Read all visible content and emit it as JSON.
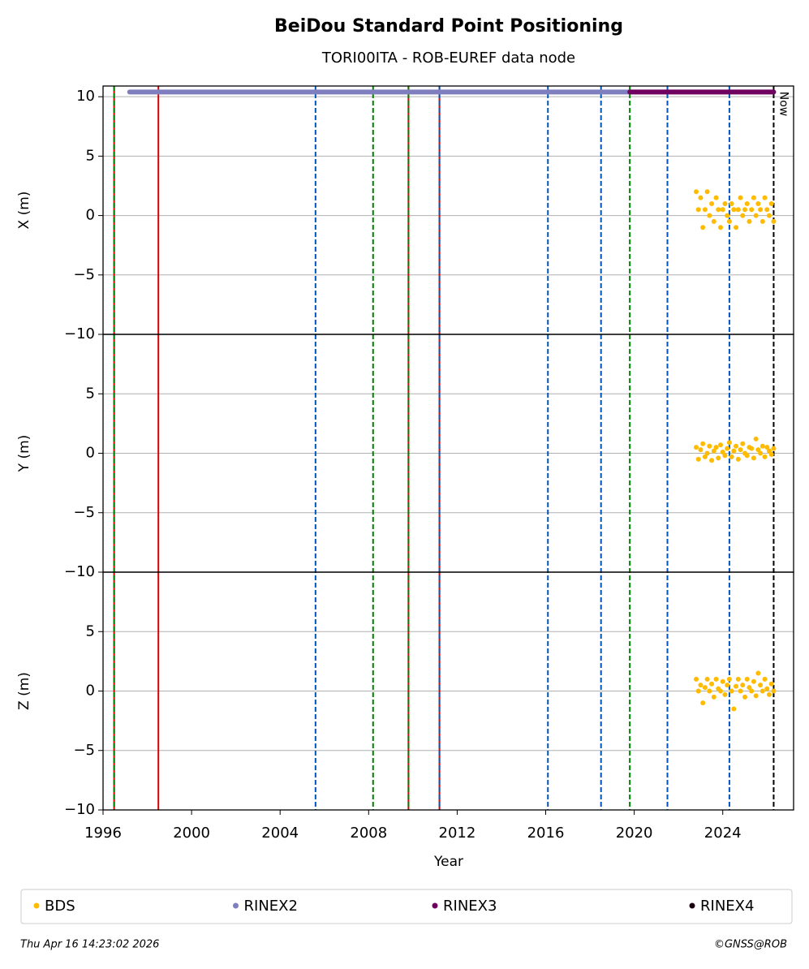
{
  "chart_data": {
    "type": "scatter",
    "title": "BeiDou Standard Point Positioning",
    "subtitle": "TORI00ITA - ROB-EUREF data node",
    "x_label": "Year",
    "xlim": [
      1996,
      2027.2
    ],
    "xticks": [
      1996,
      2000,
      2004,
      2008,
      2012,
      2016,
      2020,
      2024
    ],
    "grid": true,
    "legend": "bottom",
    "panels": [
      {
        "y_label": "X (m)",
        "ylim": [
          -10,
          10.9
        ],
        "yticks": [
          {
            "value": -10,
            "label": "−10"
          },
          {
            "value": -5,
            "label": "−5"
          },
          0,
          5,
          10
        ]
      },
      {
        "y_label": "Y (m)",
        "ylim": [
          -10,
          10
        ],
        "yticks": [
          {
            "value": -10,
            "label": "−10"
          },
          {
            "value": -5,
            "label": "−5"
          },
          0,
          5
        ]
      },
      {
        "y_label": "Z (m)",
        "ylim": [
          -10,
          10
        ],
        "yticks": [
          {
            "value": -10,
            "label": "−10"
          },
          {
            "value": -5,
            "label": "−5"
          },
          0,
          5
        ]
      }
    ],
    "series": [
      {
        "name": "BDS",
        "color": "#ffbb00",
        "panels": [
          {
            "x": [
              2022.8,
              2022.9,
              2023.0,
              2023.1,
              2023.2,
              2023.3,
              2023.4,
              2023.5,
              2023.6,
              2023.7,
              2023.8,
              2023.9,
              2024.0,
              2024.1,
              2024.2,
              2024.3,
              2024.4,
              2024.5,
              2024.6,
              2024.7,
              2024.8,
              2024.9,
              2025.0,
              2025.1,
              2025.2,
              2025.3,
              2025.4,
              2025.5,
              2025.6,
              2025.7,
              2025.8,
              2025.9,
              2026.0,
              2026.1,
              2026.2,
              2026.3
            ],
            "values": [
              2,
              0.5,
              1.5,
              -1,
              0.5,
              2,
              0,
              1,
              -0.5,
              1.5,
              0.5,
              -1,
              0.5,
              1,
              0,
              -0.5,
              1,
              0.5,
              -1,
              0.5,
              1.5,
              0,
              0.5,
              1,
              -0.5,
              0.5,
              1.5,
              0,
              1,
              0.5,
              -0.5,
              1.5,
              0.5,
              0,
              1,
              -0.5
            ]
          },
          {
            "x": [
              2022.8,
              2022.9,
              2023.0,
              2023.1,
              2023.2,
              2023.3,
              2023.4,
              2023.5,
              2023.6,
              2023.7,
              2023.8,
              2023.9,
              2024.0,
              2024.1,
              2024.2,
              2024.3,
              2024.4,
              2024.5,
              2024.6,
              2024.7,
              2024.8,
              2024.9,
              2025.0,
              2025.1,
              2025.2,
              2025.3,
              2025.4,
              2025.5,
              2025.6,
              2025.7,
              2025.8,
              2025.9,
              2026.0,
              2026.1,
              2026.2,
              2026.3
            ],
            "values": [
              0.5,
              -0.5,
              0.3,
              0.8,
              -0.3,
              0,
              0.6,
              -0.6,
              0.2,
              0.5,
              -0.4,
              0.7,
              0.1,
              -0.2,
              0.4,
              0.9,
              -0.3,
              0.2,
              0.6,
              -0.5,
              0.3,
              0.8,
              0,
              -0.2,
              0.5,
              0.4,
              -0.4,
              1.2,
              0.3,
              0,
              0.6,
              -0.3,
              0.5,
              0.2,
              -0.1,
              0.4
            ]
          },
          {
            "x": [
              2022.8,
              2022.9,
              2023.0,
              2023.1,
              2023.2,
              2023.3,
              2023.4,
              2023.5,
              2023.6,
              2023.7,
              2023.8,
              2023.9,
              2024.0,
              2024.1,
              2024.2,
              2024.3,
              2024.4,
              2024.5,
              2024.6,
              2024.7,
              2024.8,
              2024.9,
              2025.0,
              2025.1,
              2025.2,
              2025.3,
              2025.4,
              2025.5,
              2025.6,
              2025.7,
              2025.8,
              2025.9,
              2026.0,
              2026.1,
              2026.2,
              2026.3
            ],
            "values": [
              1,
              0,
              0.5,
              -1,
              0.3,
              1,
              0,
              0.6,
              -0.5,
              1,
              0.2,
              0,
              0.8,
              -0.3,
              0.5,
              1,
              0,
              -1.5,
              0.4,
              1,
              0,
              0.5,
              -0.5,
              1,
              0.3,
              0,
              0.8,
              -0.4,
              1.5,
              0.5,
              0,
              1,
              0.2,
              -0.3,
              0.6,
              0
            ]
          }
        ]
      },
      {
        "name": "RINEX2",
        "color": "#7f7fbf",
        "panels": [
          {
            "x": [
              1997.2,
              2019.8
            ],
            "values": [
              10.4,
              10.4
            ]
          }
        ]
      },
      {
        "name": "RINEX3",
        "color": "#700060",
        "panels": [
          {
            "x": [
              2019.8,
              2026.3
            ],
            "values": [
              10.4,
              10.4
            ]
          }
        ]
      },
      {
        "name": "RINEX4",
        "color": "#1a0010",
        "panels": []
      }
    ],
    "events": [
      {
        "x": 1996.5,
        "color": "#dd0000",
        "dash": false
      },
      {
        "x": 1996.5,
        "color": "#008000",
        "dash": true
      },
      {
        "x": 1998.5,
        "color": "#dd0000",
        "dash": false
      },
      {
        "x": 2005.6,
        "color": "#0055bb",
        "dash": true
      },
      {
        "x": 2008.2,
        "color": "#008000",
        "dash": true
      },
      {
        "x": 2009.8,
        "color": "#dd0000",
        "dash": false
      },
      {
        "x": 2009.8,
        "color": "#008000",
        "dash": true
      },
      {
        "x": 2011.2,
        "color": "#dd0000",
        "dash": false
      },
      {
        "x": 2011.2,
        "color": "#0055bb",
        "dash": true
      },
      {
        "x": 2016.1,
        "color": "#0055bb",
        "dash": true
      },
      {
        "x": 2018.5,
        "color": "#0055bb",
        "dash": true
      },
      {
        "x": 2019.8,
        "color": "#008000",
        "dash": true
      },
      {
        "x": 2021.5,
        "color": "#0055bb",
        "dash": true
      },
      {
        "x": 2024.3,
        "color": "#0055bb",
        "dash": true
      },
      {
        "x": 2026.3,
        "color": "#000000",
        "dash": true,
        "label": "Now"
      }
    ],
    "footer_left": "Thu Apr 16 14:23:02 2026",
    "footer_right": "©GNSS@ROB"
  }
}
